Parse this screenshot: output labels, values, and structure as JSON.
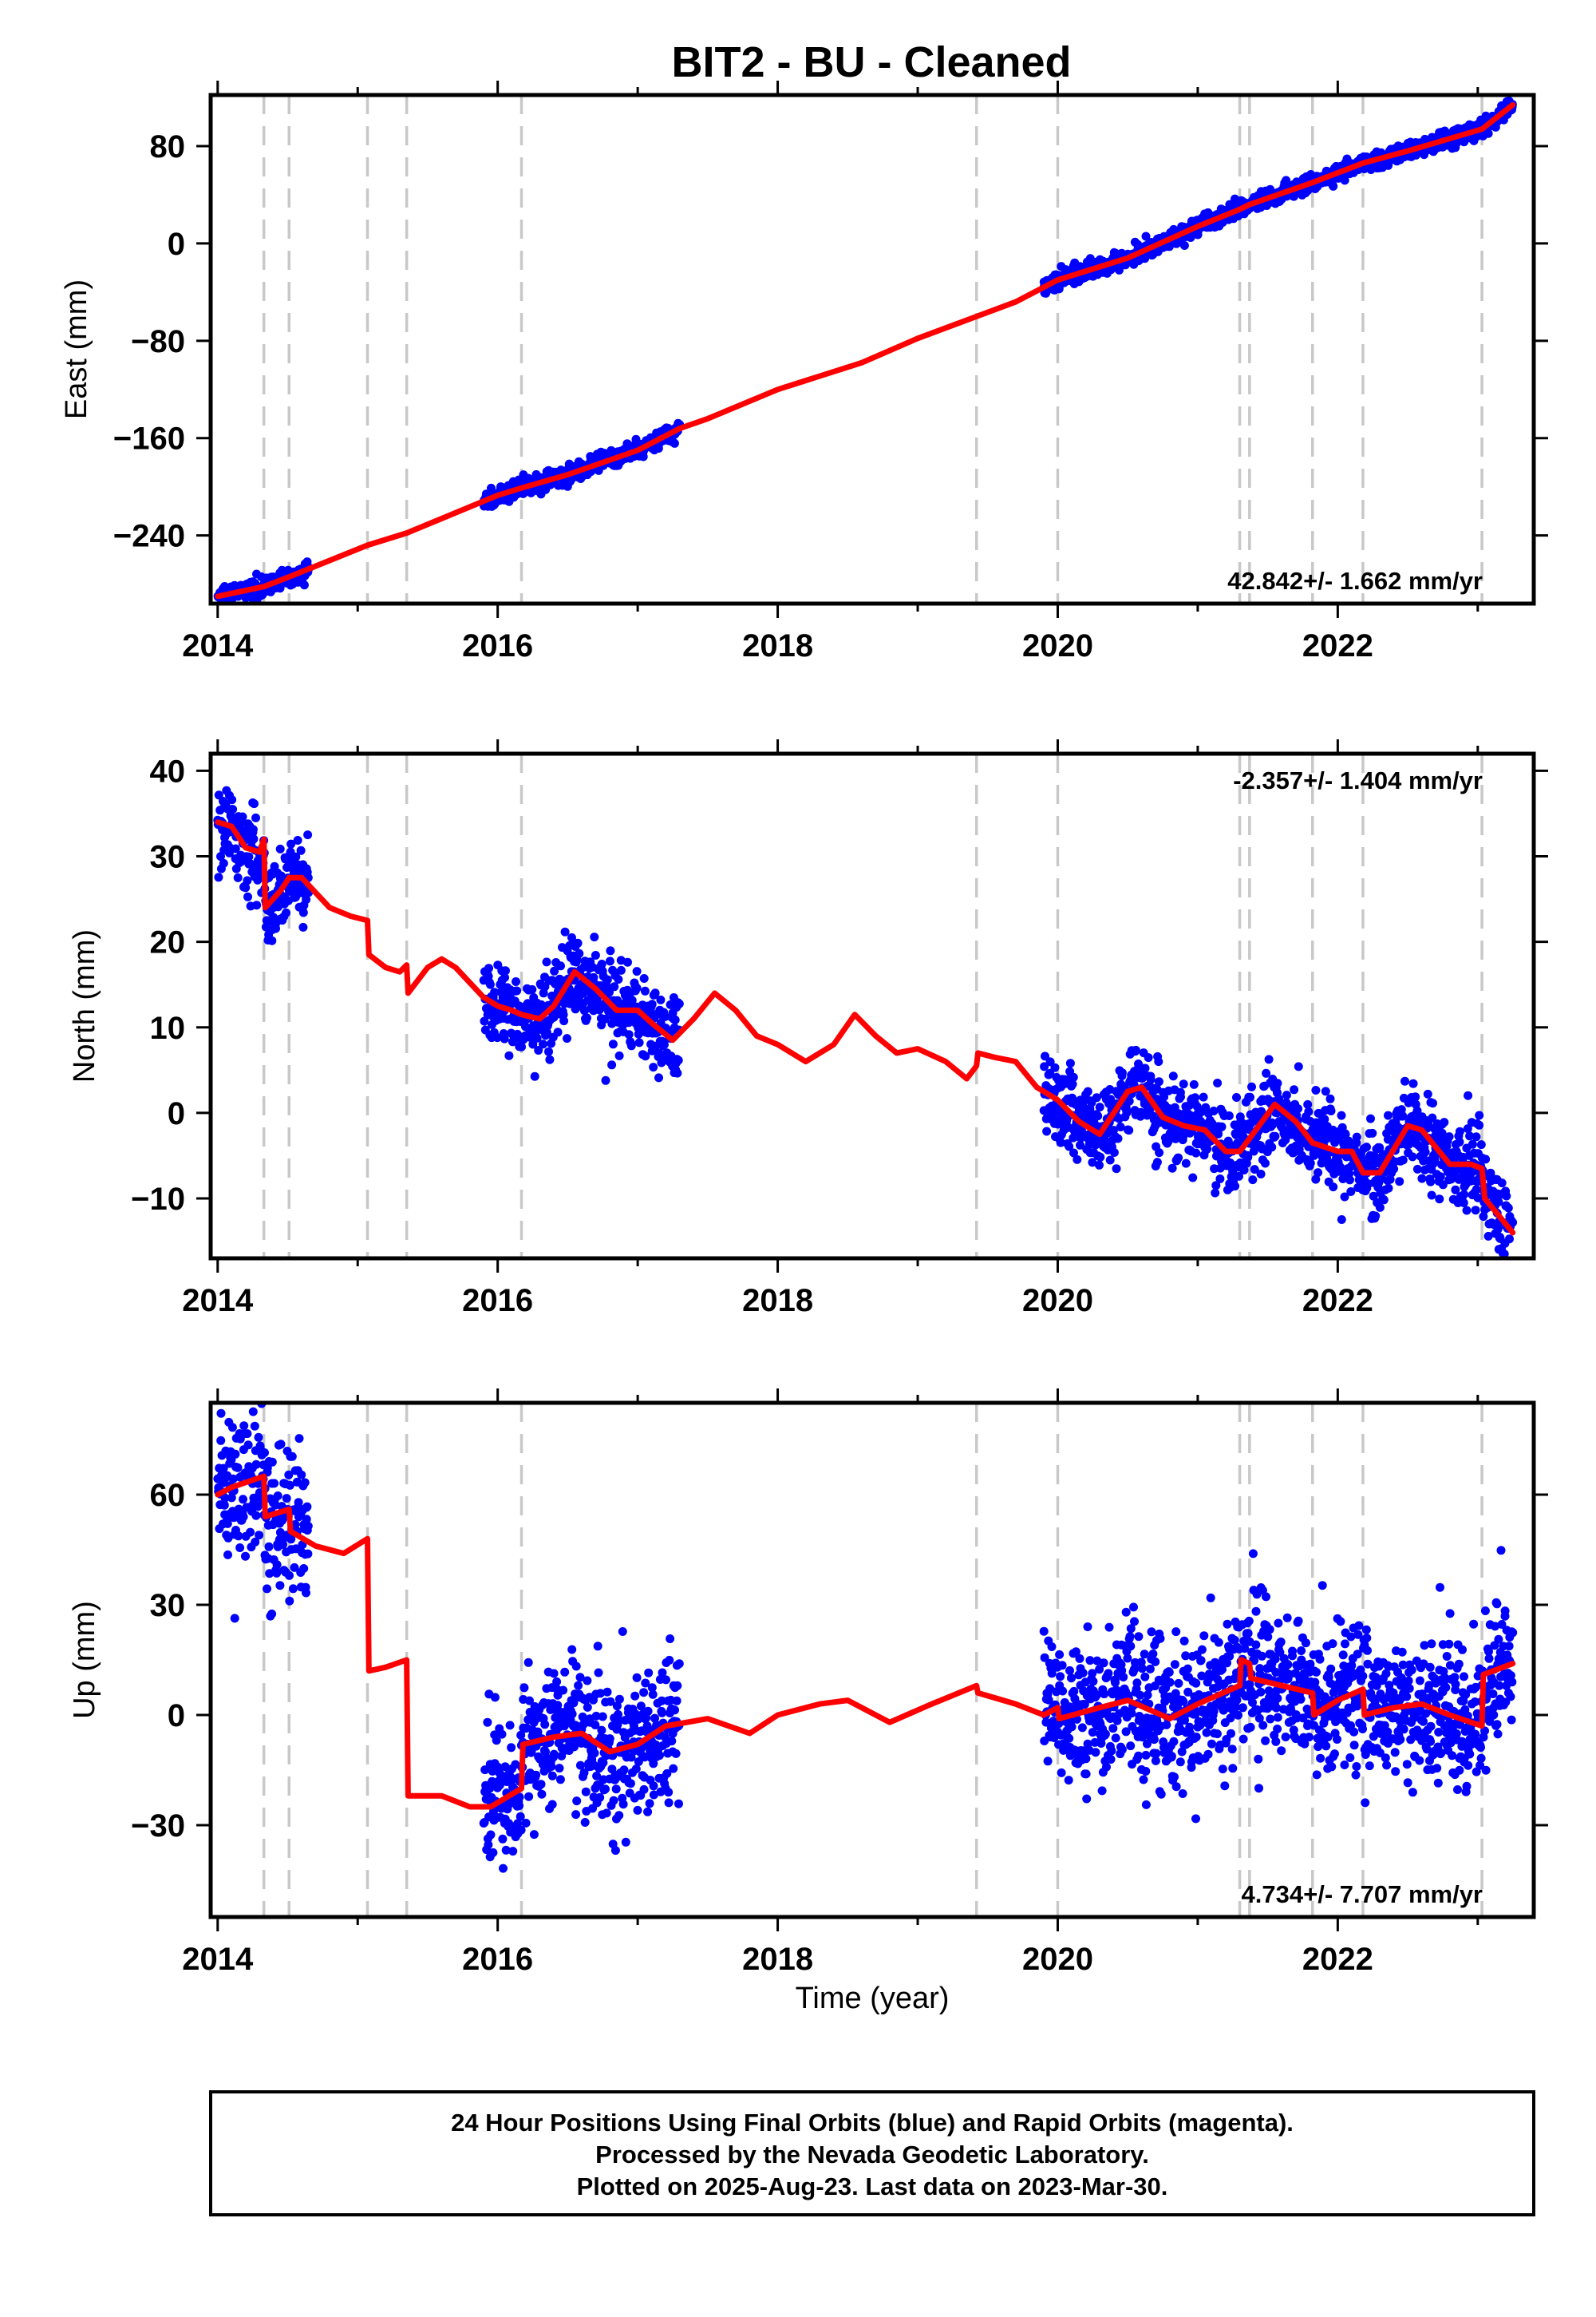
{
  "title": "BIT2  - BU - Cleaned",
  "xlabel": "Time (year)",
  "x_tick_labels": [
    "2014",
    "2016",
    "2018",
    "2020",
    "2022"
  ],
  "footer": {
    "line1": "24 Hour Positions Using Final Orbits (blue) and Rapid Orbits (magenta).",
    "line2": "Processed by the Nevada Geodetic Laboratory.",
    "line3": "Plotted on 2025-Aug-23. Last data on 2023-Mar-30."
  },
  "colors": {
    "data": "#0000ff",
    "model": "#ff0000",
    "event_lines": "#c8c8c8",
    "frame": "#000000"
  },
  "chart_data": [
    {
      "type": "scatter",
      "name": "east",
      "ylabel": "East (mm)",
      "xlim": [
        2013.95,
        2023.4
      ],
      "ylim": [
        -296,
        122
      ],
      "y_ticks": [
        -240,
        -160,
        -80,
        0,
        80
      ],
      "rate_label": "42.842+/- 1.662 mm/yr",
      "rate_position": "bottom-right",
      "event_lines": [
        2014.33,
        2014.51,
        2015.07,
        2015.35,
        2016.17,
        2019.42,
        2020.0,
        2021.3,
        2021.37,
        2021.82,
        2022.18,
        2023.03
      ],
      "data_segments": [
        [
          2014.0,
          2014.65
        ],
        [
          2015.9,
          2017.3
        ],
        [
          2019.9,
          2023.25
        ]
      ],
      "data_scatter": 3.5,
      "model": [
        [
          2014.0,
          -290
        ],
        [
          2014.33,
          -282
        ],
        [
          2014.51,
          -274
        ],
        [
          2015.07,
          -248
        ],
        [
          2015.35,
          -238
        ],
        [
          2016.0,
          -207
        ],
        [
          2016.17,
          -201
        ],
        [
          2016.5,
          -190
        ],
        [
          2017.0,
          -170
        ],
        [
          2017.3,
          -152
        ],
        [
          2017.5,
          -144
        ],
        [
          2018.0,
          -120
        ],
        [
          2018.6,
          -98
        ],
        [
          2019.0,
          -78
        ],
        [
          2019.42,
          -60
        ],
        [
          2019.7,
          -48
        ],
        [
          2020.0,
          -30
        ],
        [
          2020.5,
          -12
        ],
        [
          2021.0,
          14
        ],
        [
          2021.3,
          28
        ],
        [
          2021.37,
          32
        ],
        [
          2021.82,
          50
        ],
        [
          2022.18,
          66
        ],
        [
          2022.5,
          76
        ],
        [
          2023.03,
          94
        ],
        [
          2023.25,
          114
        ]
      ]
    },
    {
      "type": "scatter",
      "name": "north",
      "ylabel": "North (mm)",
      "xlim": [
        2013.95,
        2023.4
      ],
      "ylim": [
        -17,
        42
      ],
      "y_ticks": [
        -10,
        0,
        10,
        20,
        30,
        40
      ],
      "rate_label": "-2.357+/- 1.404 mm/yr",
      "rate_position": "top-right",
      "event_lines": [
        2014.33,
        2014.51,
        2015.07,
        2015.35,
        2016.17,
        2019.42,
        2020.0,
        2021.3,
        2021.37,
        2021.82,
        2022.18,
        2023.03
      ],
      "data_segments": [
        [
          2014.0,
          2014.65
        ],
        [
          2015.9,
          2017.3
        ],
        [
          2019.9,
          2023.25
        ]
      ],
      "data_scatter": 2.4,
      "model": [
        [
          2014.0,
          34
        ],
        [
          2014.1,
          33.5
        ],
        [
          2014.2,
          31
        ],
        [
          2014.3,
          30.5
        ],
        [
          2014.33,
          32
        ],
        [
          2014.34,
          24
        ],
        [
          2014.45,
          26
        ],
        [
          2014.51,
          27.5
        ],
        [
          2014.6,
          27.5
        ],
        [
          2014.8,
          24
        ],
        [
          2014.95,
          23
        ],
        [
          2015.07,
          22.5
        ],
        [
          2015.08,
          18.5
        ],
        [
          2015.2,
          17
        ],
        [
          2015.3,
          16.5
        ],
        [
          2015.35,
          17.3
        ],
        [
          2015.36,
          14
        ],
        [
          2015.5,
          17
        ],
        [
          2015.6,
          18
        ],
        [
          2015.7,
          17
        ],
        [
          2015.9,
          13.5
        ],
        [
          2016.0,
          12.5
        ],
        [
          2016.1,
          12
        ],
        [
          2016.17,
          11.5
        ],
        [
          2016.3,
          11
        ],
        [
          2016.4,
          12.5
        ],
        [
          2016.55,
          16.5
        ],
        [
          2016.7,
          14.5
        ],
        [
          2016.85,
          12
        ],
        [
          2017.0,
          12
        ],
        [
          2017.1,
          10.5
        ],
        [
          2017.25,
          8.5
        ],
        [
          2017.4,
          11
        ],
        [
          2017.55,
          14
        ],
        [
          2017.7,
          12
        ],
        [
          2017.85,
          9
        ],
        [
          2018.0,
          8
        ],
        [
          2018.2,
          6
        ],
        [
          2018.4,
          8
        ],
        [
          2018.55,
          11.5
        ],
        [
          2018.7,
          9
        ],
        [
          2018.85,
          7
        ],
        [
          2019.0,
          7.5
        ],
        [
          2019.2,
          6
        ],
        [
          2019.35,
          4
        ],
        [
          2019.42,
          5.5
        ],
        [
          2019.43,
          7
        ],
        [
          2019.55,
          6.5
        ],
        [
          2019.7,
          6
        ],
        [
          2019.85,
          3
        ],
        [
          2020.0,
          1.5
        ],
        [
          2020.15,
          -1
        ],
        [
          2020.3,
          -2.5
        ],
        [
          2020.5,
          2.5
        ],
        [
          2020.6,
          3
        ],
        [
          2020.75,
          -0.5
        ],
        [
          2020.9,
          -1.5
        ],
        [
          2021.05,
          -2
        ],
        [
          2021.2,
          -4.5
        ],
        [
          2021.3,
          -4.5
        ],
        [
          2021.37,
          -3
        ],
        [
          2021.55,
          1
        ],
        [
          2021.7,
          -1
        ],
        [
          2021.82,
          -3.5
        ],
        [
          2022.0,
          -4.5
        ],
        [
          2022.1,
          -4.5
        ],
        [
          2022.18,
          -7
        ],
        [
          2022.3,
          -7
        ],
        [
          2022.5,
          -1.5
        ],
        [
          2022.6,
          -2
        ],
        [
          2022.8,
          -6
        ],
        [
          2022.95,
          -6
        ],
        [
          2023.03,
          -6.5
        ],
        [
          2023.05,
          -10
        ],
        [
          2023.15,
          -12
        ],
        [
          2023.25,
          -14
        ]
      ]
    },
    {
      "type": "scatter",
      "name": "up",
      "ylabel": "Up (mm)",
      "xlim": [
        2013.95,
        2023.4
      ],
      "ylim": [
        -55,
        85
      ],
      "y_ticks": [
        -30,
        0,
        30,
        60
      ],
      "rate_label": "4.734+/- 7.707 mm/yr",
      "rate_position": "bottom-right",
      "event_lines": [
        2014.33,
        2014.51,
        2015.07,
        2015.35,
        2016.17,
        2019.42,
        2020.0,
        2021.3,
        2021.37,
        2021.82,
        2022.18,
        2023.03
      ],
      "data_segments": [
        [
          2014.0,
          2014.65
        ],
        [
          2015.9,
          2017.3
        ],
        [
          2019.9,
          2023.25
        ]
      ],
      "data_scatter": 10,
      "model": [
        [
          2014.0,
          60
        ],
        [
          2014.1,
          62
        ],
        [
          2014.33,
          65
        ],
        [
          2014.34,
          54
        ],
        [
          2014.51,
          56
        ],
        [
          2014.52,
          50
        ],
        [
          2014.7,
          46
        ],
        [
          2014.9,
          44
        ],
        [
          2015.07,
          48
        ],
        [
          2015.08,
          12
        ],
        [
          2015.2,
          13
        ],
        [
          2015.35,
          15
        ],
        [
          2015.36,
          -22
        ],
        [
          2015.6,
          -22
        ],
        [
          2015.8,
          -25
        ],
        [
          2015.95,
          -25
        ],
        [
          2016.17,
          -20
        ],
        [
          2016.18,
          -8
        ],
        [
          2016.4,
          -6
        ],
        [
          2016.6,
          -5
        ],
        [
          2016.8,
          -10
        ],
        [
          2017.0,
          -8
        ],
        [
          2017.2,
          -3
        ],
        [
          2017.5,
          -1
        ],
        [
          2017.8,
          -5
        ],
        [
          2018.0,
          0
        ],
        [
          2018.3,
          3
        ],
        [
          2018.5,
          4
        ],
        [
          2018.8,
          -2
        ],
        [
          2019.1,
          3
        ],
        [
          2019.42,
          8
        ],
        [
          2019.43,
          6
        ],
        [
          2019.7,
          3
        ],
        [
          2019.9,
          0
        ],
        [
          2020.0,
          2
        ],
        [
          2020.01,
          -1
        ],
        [
          2020.3,
          2
        ],
        [
          2020.5,
          4
        ],
        [
          2020.8,
          -1
        ],
        [
          2021.0,
          3
        ],
        [
          2021.3,
          8
        ],
        [
          2021.31,
          15
        ],
        [
          2021.37,
          14
        ],
        [
          2021.38,
          10
        ],
        [
          2021.6,
          8
        ],
        [
          2021.82,
          6
        ],
        [
          2021.83,
          0
        ],
        [
          2022.0,
          4
        ],
        [
          2022.18,
          7
        ],
        [
          2022.19,
          0
        ],
        [
          2022.4,
          2
        ],
        [
          2022.6,
          3
        ],
        [
          2022.8,
          0
        ],
        [
          2023.03,
          -3
        ],
        [
          2023.04,
          11
        ],
        [
          2023.25,
          14
        ]
      ]
    }
  ]
}
